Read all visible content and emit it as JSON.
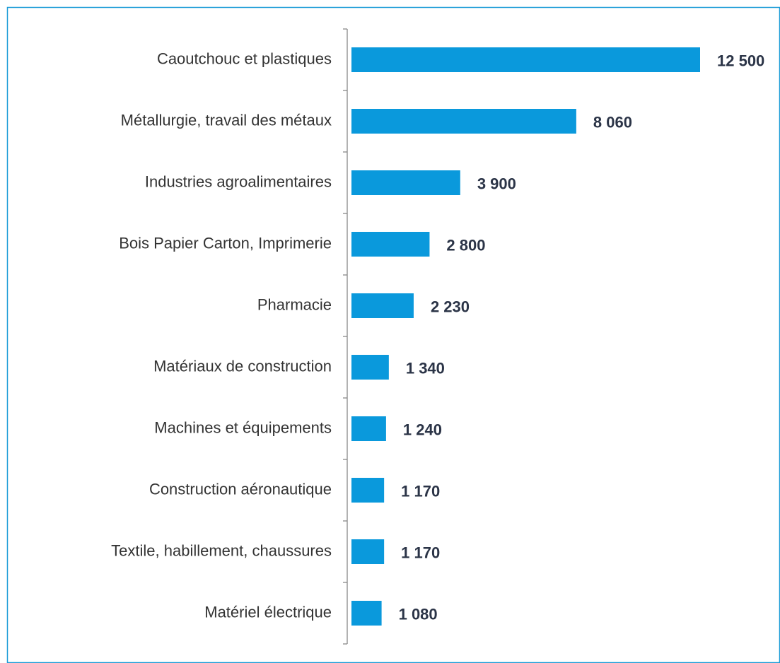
{
  "chart_data": {
    "type": "bar",
    "orientation": "horizontal",
    "color": "#0a99dc",
    "categories": [
      "Caoutchouc et plastiques",
      "Métallurgie, travail des métaux",
      "Industries agroalimentaires",
      "Bois Papier Carton, Imprimerie",
      "Pharmacie",
      "Matériaux de construction",
      "Machines et équipements",
      "Construction aéronautique",
      "Textile, habillement, chaussures",
      "Matériel électrique"
    ],
    "values": [
      12500,
      8060,
      3900,
      2800,
      2230,
      1340,
      1240,
      1170,
      1170,
      1080
    ],
    "value_labels": [
      "12 500",
      "8 060",
      "3 900",
      "2 800",
      "2 230",
      "1 340",
      "1 240",
      "1 170",
      "1 170",
      "1 080"
    ]
  }
}
